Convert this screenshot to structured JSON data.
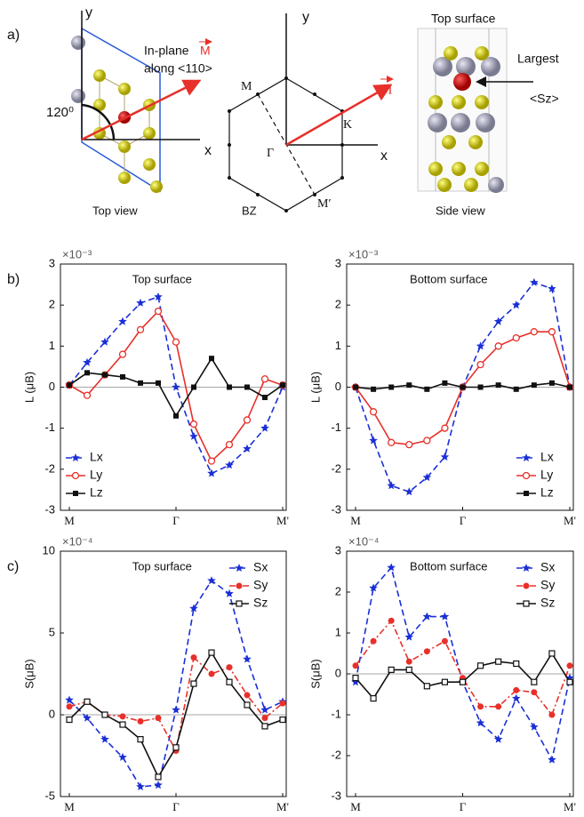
{
  "panel_a": {
    "label": "a)",
    "top_view": {
      "y": "y",
      "x": "x",
      "angle": "120⁰",
      "vector_prefix": "In-plane",
      "vector_symbol": "M",
      "vector_dir": "along <110>",
      "caption": "Top view"
    },
    "bz": {
      "y": "y",
      "x": "x",
      "m": "M",
      "gamma": "Γ",
      "k": "K",
      "m_prime": "M′",
      "vector_symbol": "M",
      "caption": "BZ"
    },
    "side_view": {
      "title": "Top surface",
      "pointer_1": "Largest",
      "pointer_2": "<Sz>",
      "caption": "Side view"
    }
  },
  "chart_data": [
    {
      "type": "line",
      "panel": "b)",
      "annotation": "Top surface",
      "y_scale": "×10⁻³",
      "ylabel": "L (μB)",
      "legend": "lower left",
      "categories": [
        "M",
        null,
        null,
        null,
        null,
        null,
        "Γ",
        null,
        null,
        null,
        null,
        null,
        "M'"
      ],
      "ylim": [
        -3,
        3
      ],
      "yticks": [
        -3,
        -2,
        -1,
        0,
        1,
        2,
        3
      ],
      "series": [
        {
          "name": "Lx",
          "color": "#1a2fd6",
          "line_style": "dashed",
          "marker": "star",
          "values": [
            0.05,
            0.6,
            1.1,
            1.6,
            2.05,
            2.2,
            0.0,
            -1.2,
            -2.1,
            -1.9,
            -1.5,
            -1.0,
            0.0
          ]
        },
        {
          "name": "Ly",
          "color": "#e8302a",
          "line_style": "solid",
          "marker": "open-circle",
          "values": [
            0.05,
            -0.2,
            0.3,
            0.8,
            1.4,
            1.85,
            1.1,
            -0.9,
            -1.8,
            -1.4,
            -0.8,
            0.2,
            0.05
          ]
        },
        {
          "name": "Lz",
          "color": "#111111",
          "line_style": "solid",
          "marker": "square",
          "values": [
            0.05,
            0.35,
            0.3,
            0.25,
            0.1,
            0.1,
            -0.7,
            0.0,
            0.7,
            0.0,
            0.0,
            -0.25,
            0.05
          ]
        }
      ]
    },
    {
      "type": "line",
      "annotation": "Bottom surface",
      "y_scale": "×10⁻³",
      "ylabel": "L (μB)",
      "legend": "lower right",
      "categories": [
        "M",
        null,
        null,
        null,
        null,
        null,
        "Γ",
        null,
        null,
        null,
        null,
        null,
        "M'"
      ],
      "ylim": [
        -3,
        3
      ],
      "yticks": [
        -3,
        -2,
        -1,
        0,
        1,
        2,
        3
      ],
      "series": [
        {
          "name": "Lx",
          "color": "#1a2fd6",
          "line_style": "dashed",
          "marker": "star",
          "values": [
            0.0,
            -1.3,
            -2.4,
            -2.55,
            -2.2,
            -1.7,
            0.0,
            1.0,
            1.6,
            2.0,
            2.55,
            2.4,
            0.0
          ]
        },
        {
          "name": "Ly",
          "color": "#e8302a",
          "line_style": "solid",
          "marker": "open-circle",
          "values": [
            0.0,
            -0.6,
            -1.35,
            -1.4,
            -1.3,
            -1.0,
            0.0,
            0.55,
            1.0,
            1.2,
            1.35,
            1.35,
            0.0
          ]
        },
        {
          "name": "Lz",
          "color": "#111111",
          "line_style": "solid",
          "marker": "square",
          "values": [
            0.0,
            -0.05,
            0.0,
            0.05,
            -0.05,
            0.1,
            0.0,
            0.0,
            0.05,
            -0.05,
            0.05,
            0.1,
            0.0
          ]
        }
      ]
    },
    {
      "type": "line",
      "panel": "c)",
      "annotation": "Top surface",
      "y_scale": "×10⁻⁴",
      "ylabel": "S(μB)",
      "legend": "upper right",
      "categories": [
        "M",
        null,
        null,
        null,
        null,
        null,
        "Γ",
        null,
        null,
        null,
        null,
        null,
        "M'"
      ],
      "ylim": [
        -5,
        10
      ],
      "yticks": [
        -5,
        0,
        5,
        10
      ],
      "series": [
        {
          "name": "Sx",
          "color": "#1a2fd6",
          "line_style": "dashed",
          "marker": "star",
          "values": [
            0.9,
            -0.2,
            -1.5,
            -2.6,
            -4.4,
            -4.3,
            0.3,
            6.5,
            8.2,
            7.4,
            3.4,
            0.3,
            0.8
          ]
        },
        {
          "name": "Sy",
          "color": "#e8302a",
          "line_style": "dashdot",
          "marker": "circle",
          "values": [
            0.5,
            0.8,
            0.0,
            -0.1,
            -0.4,
            -0.2,
            -2.2,
            3.5,
            2.5,
            2.9,
            1.2,
            -0.2,
            0.7
          ]
        },
        {
          "name": "Sz",
          "color": "#111111",
          "line_style": "solid",
          "marker": "open-square",
          "values": [
            -0.3,
            0.8,
            0.0,
            -0.6,
            -1.5,
            -3.8,
            -2.0,
            1.9,
            3.8,
            2.0,
            0.6,
            -0.7,
            -0.3
          ]
        }
      ]
    },
    {
      "type": "line",
      "annotation": "Bottom surface",
      "y_scale": "×10⁻⁴",
      "ylabel": "S(μB)",
      "legend": "upper right",
      "categories": [
        "M",
        null,
        null,
        null,
        null,
        null,
        "Γ",
        null,
        null,
        null,
        null,
        null,
        "M'"
      ],
      "ylim": [
        -3,
        3
      ],
      "yticks": [
        -3,
        -2,
        -1,
        0,
        1,
        2,
        3
      ],
      "series": [
        {
          "name": "Sx",
          "color": "#1a2fd6",
          "line_style": "dashed",
          "marker": "star",
          "values": [
            -0.2,
            2.1,
            2.6,
            0.9,
            1.4,
            1.4,
            -0.2,
            -1.2,
            -1.6,
            -0.6,
            -1.3,
            -2.1,
            -0.1
          ]
        },
        {
          "name": "Sy",
          "color": "#e8302a",
          "line_style": "dashdot",
          "marker": "circle",
          "values": [
            0.2,
            0.8,
            1.3,
            0.3,
            0.55,
            0.8,
            -0.1,
            -0.8,
            -0.8,
            -0.4,
            -0.45,
            -1.0,
            0.2
          ]
        },
        {
          "name": "Sz",
          "color": "#111111",
          "line_style": "solid",
          "marker": "open-square",
          "values": [
            -0.1,
            -0.6,
            0.1,
            0.1,
            -0.3,
            -0.2,
            -0.2,
            0.2,
            0.3,
            0.25,
            -0.2,
            0.5,
            -0.2
          ]
        }
      ]
    }
  ]
}
